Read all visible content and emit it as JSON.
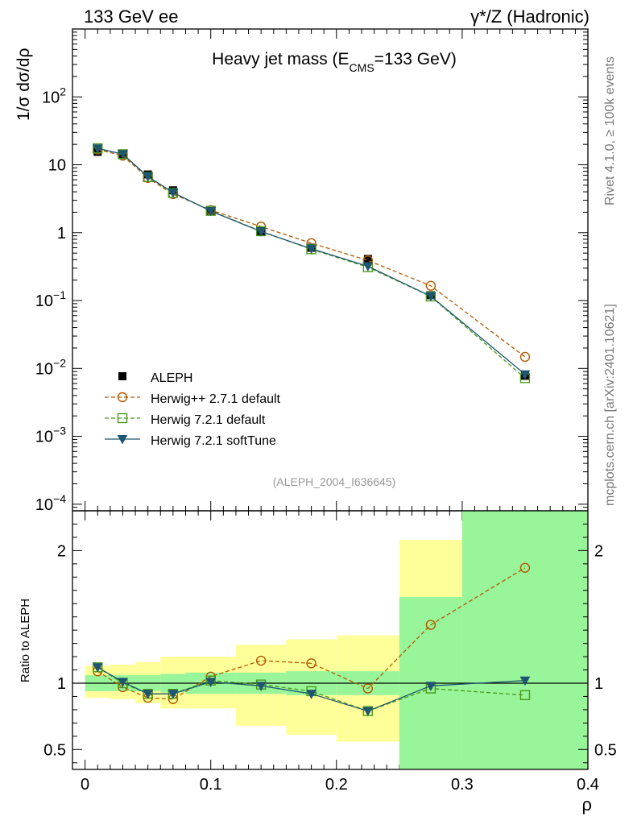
{
  "header": {
    "left": "133 GeV ee",
    "right": "γ*/Z (Hadronic)"
  },
  "side_labels": {
    "rivet": "Rivet 4.1.0, ≥ 100k events",
    "mcplots": "mcplots.cern.ch [arXiv:2401.10621]"
  },
  "chart_data": {
    "type": "line",
    "title_main": "Heavy jet mass (E",
    "title_sub": "CMS",
    "title_end": "=133 GeV)",
    "analysis_id": "(ALEPH_2004_I636645)",
    "xlabel": "ρ",
    "ylabel_main": "1/σ  dσ/dρ",
    "ylabel_ratio": "Ratio to ALEPH",
    "xlim": [
      -0.01,
      0.4
    ],
    "ylim_main": [
      8e-05,
      1000
    ],
    "ylim_ratio": [
      0.35,
      2.3
    ],
    "x_ticks": [
      "0",
      "0.1",
      "0.2",
      "0.3",
      "0.4"
    ],
    "y_ticks_main": [
      {
        "base": "10",
        "exp": "2",
        "value": 100
      },
      {
        "base": "10",
        "exp": "",
        "value": 10
      },
      {
        "base": "1",
        "exp": "",
        "value": 1
      },
      {
        "base": "10",
        "exp": "−1",
        "value": 0.1
      },
      {
        "base": "10",
        "exp": "−2",
        "value": 0.01
      },
      {
        "base": "10",
        "exp": "−3",
        "value": 0.001
      },
      {
        "base": "10",
        "exp": "−4",
        "value": 0.0001
      }
    ],
    "y_ticks_ratio": [
      "0.5",
      "1",
      "2"
    ],
    "bin_edges": [
      0,
      0.02,
      0.04,
      0.06,
      0.08,
      0.12,
      0.16,
      0.2,
      0.25,
      0.3,
      0.4
    ],
    "x": [
      0.01,
      0.03,
      0.05,
      0.07,
      0.1,
      0.14,
      0.18,
      0.225,
      0.275,
      0.35
    ],
    "data": {
      "name": "ALEPH",
      "values": [
        15.5,
        14.0,
        7.2,
        4.2,
        2.05,
        1.05,
        0.6,
        0.41,
        0.12,
        0.0078
      ],
      "band_inner": [
        [
          0.94,
          1.06
        ],
        [
          0.94,
          1.06
        ],
        [
          0.94,
          1.06
        ],
        [
          0.93,
          1.07
        ],
        [
          0.92,
          1.08
        ],
        [
          0.92,
          1.08
        ],
        [
          0.91,
          1.09
        ],
        [
          0.91,
          1.09
        ],
        [
          0.35,
          1.65
        ],
        [
          0.35,
          2.3
        ]
      ],
      "band_outer": [
        [
          0.89,
          1.13
        ],
        [
          0.88,
          1.14
        ],
        [
          0.85,
          1.16
        ],
        [
          0.81,
          1.2
        ],
        [
          0.81,
          1.2
        ],
        [
          0.68,
          1.29
        ],
        [
          0.61,
          1.33
        ],
        [
          0.56,
          1.36
        ],
        [
          0.35,
          2.08
        ],
        [
          0.35,
          2.3
        ]
      ]
    },
    "series": [
      {
        "name": "Herwig++ 2.7.1 default",
        "color": "#b25a00",
        "marker": "circle",
        "dash": "5,3",
        "values": [
          16.8,
          13.6,
          6.4,
          3.7,
          2.15,
          1.23,
          0.7,
          0.39,
          0.165,
          0.0148
        ],
        "ratio": [
          1.09,
          0.97,
          0.89,
          0.88,
          1.05,
          1.17,
          1.15,
          0.96,
          1.44,
          1.87
        ]
      },
      {
        "name": "Herwig 7.2.1 default",
        "color": "#4a9a1a",
        "marker": "square",
        "dash": "5,3",
        "values": [
          17.5,
          14.3,
          6.6,
          3.85,
          2.1,
          1.05,
          0.57,
          0.31,
          0.115,
          0.0072
        ],
        "ratio": [
          1.12,
          1.0,
          0.92,
          0.92,
          1.02,
          0.99,
          0.94,
          0.79,
          0.96,
          0.91
        ]
      },
      {
        "name": "Herwig 7.2.1 softTune",
        "color": "#1e5670",
        "marker": "triangle-down",
        "dash": "",
        "values": [
          17.4,
          14.4,
          6.7,
          3.9,
          2.08,
          1.04,
          0.58,
          0.32,
          0.116,
          0.0082
        ],
        "ratio": [
          1.12,
          1.01,
          0.92,
          0.92,
          1.01,
          0.98,
          0.92,
          0.79,
          0.98,
          1.02
        ]
      }
    ]
  }
}
